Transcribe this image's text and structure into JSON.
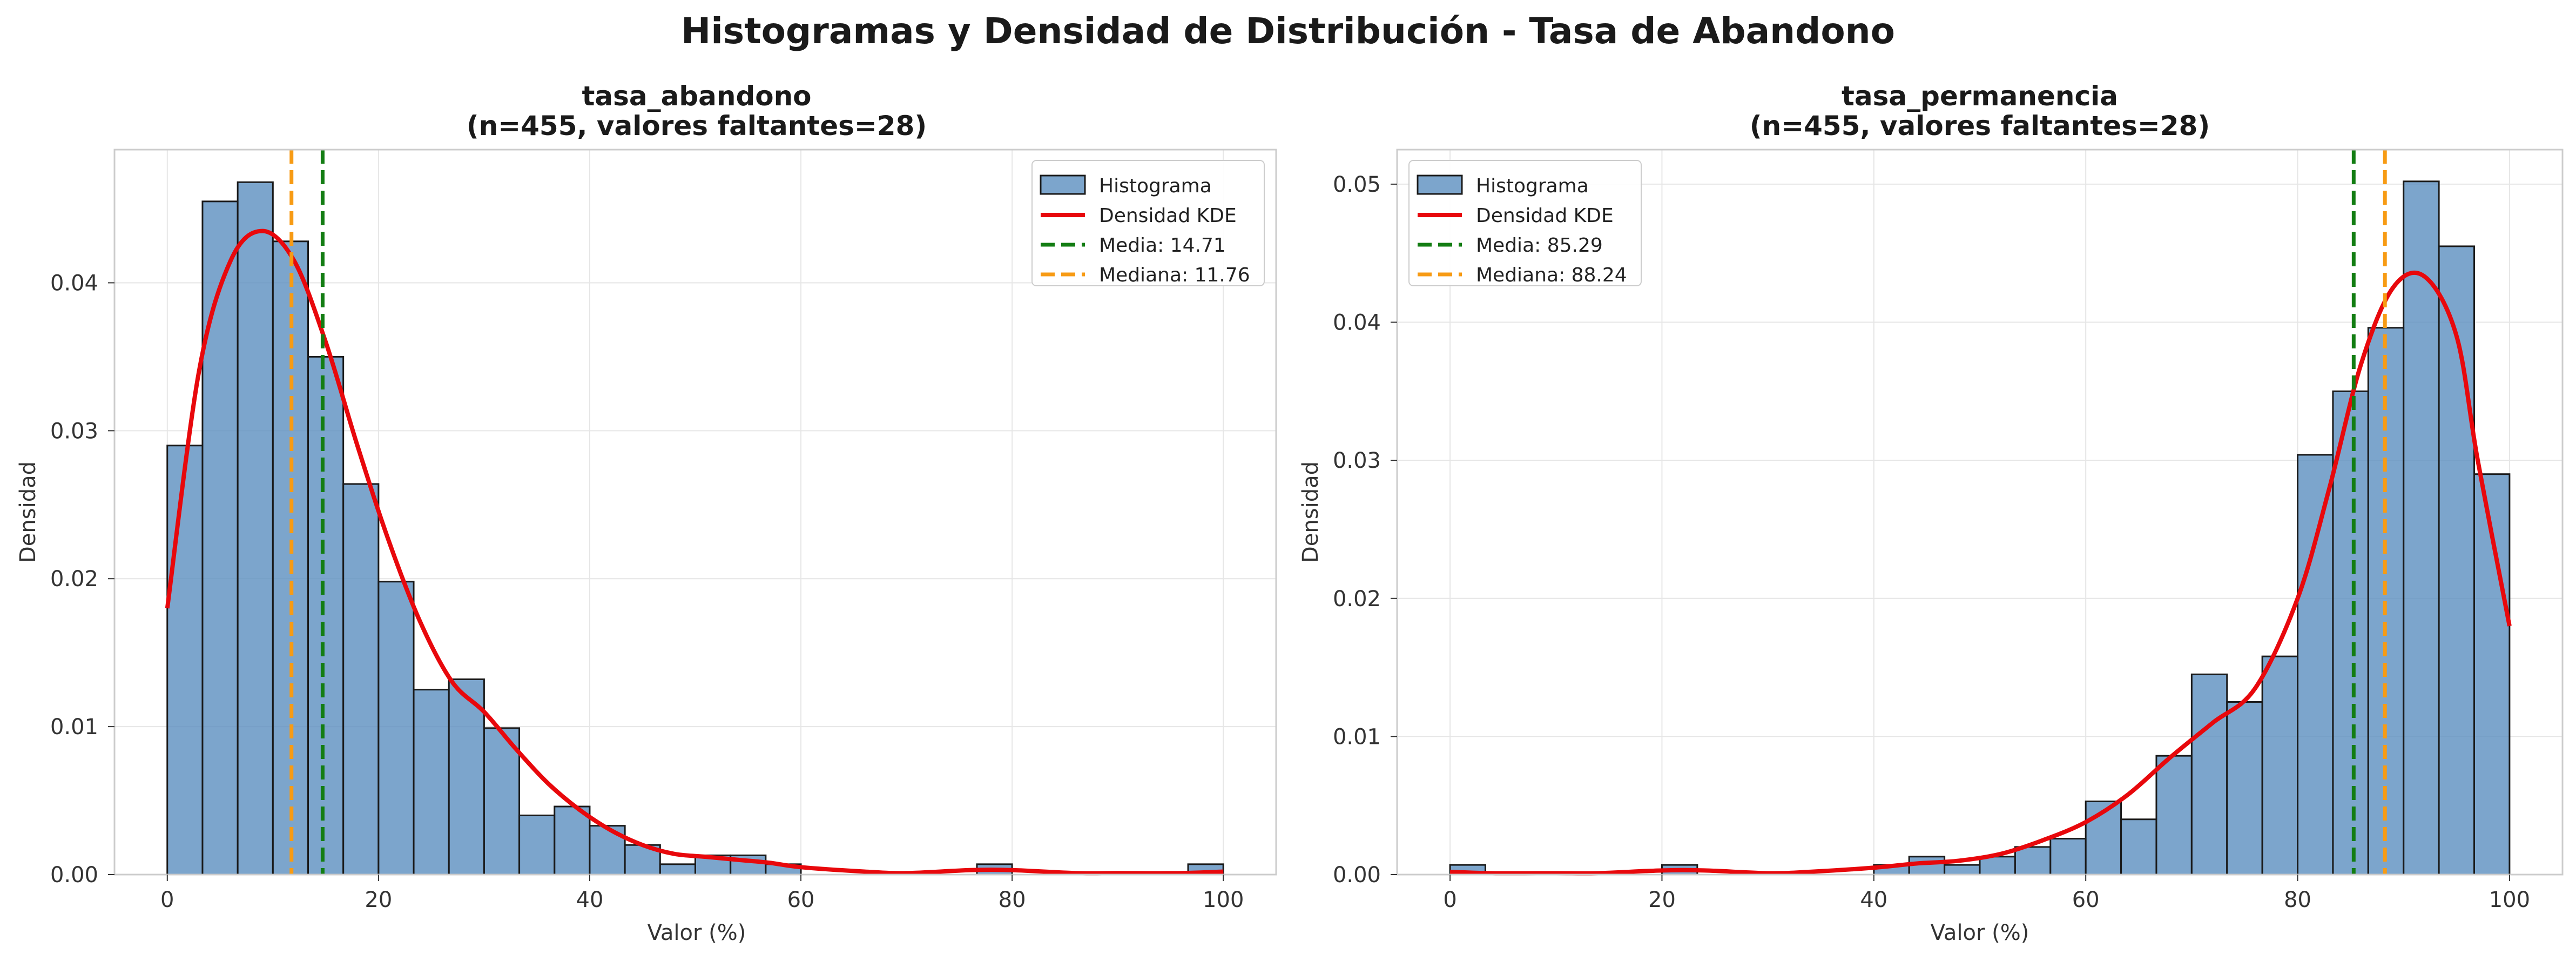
{
  "figure": {
    "suptitle": "Histogramas y Densidad de Distribución - Tasa de Abandono"
  },
  "colors": {
    "bar_fill": "#5b8fbf",
    "bar_edge": "#1a1a1a",
    "kde": "#e8080c",
    "mean": "#137d13",
    "median": "#f79b14",
    "grid": "#e6e6e6",
    "frame": "#cccccc"
  },
  "chart_data": [
    {
      "type": "bar",
      "subtype": "histogram_with_kde",
      "title_line1": "tasa_abandono",
      "title_line2": "(n=455, valores faltantes=28)",
      "xlabel": "Valor (%)",
      "ylabel": "Densidad",
      "xlim": [
        -5,
        105
      ],
      "ylim": [
        0,
        0.049
      ],
      "xticks": [
        0,
        20,
        40,
        60,
        80,
        100
      ],
      "yticks": [
        0.0,
        0.01,
        0.02,
        0.03,
        0.04
      ],
      "ytick_labels": [
        "0.00",
        "0.01",
        "0.02",
        "0.03",
        "0.04"
      ],
      "grid": true,
      "legend_position": "upper right",
      "bins": {
        "start": 0,
        "width": 3.3333,
        "count": 30
      },
      "values": [
        0.029,
        0.0455,
        0.0468,
        0.0428,
        0.035,
        0.0264,
        0.0198,
        0.0125,
        0.0132,
        0.0099,
        0.004,
        0.0046,
        0.0033,
        0.002,
        0.0007,
        0.0013,
        0.0013,
        0.0007,
        0,
        0,
        0,
        0,
        0,
        0.0007,
        0,
        0,
        0,
        0,
        0,
        0.0007
      ],
      "kde": {
        "x": [
          0,
          3,
          6,
          9,
          12,
          15,
          18,
          21,
          24,
          27,
          30,
          33,
          36,
          39,
          42,
          45,
          48,
          51,
          54,
          57,
          60,
          66,
          70,
          76,
          80,
          86,
          90,
          96,
          100
        ],
        "y": [
          0.018,
          0.034,
          0.0415,
          0.0435,
          0.0415,
          0.036,
          0.029,
          0.0225,
          0.017,
          0.013,
          0.011,
          0.0085,
          0.0062,
          0.0044,
          0.003,
          0.002,
          0.0014,
          0.0012,
          0.001,
          0.0008,
          0.0005,
          0.0002,
          0.0001,
          0.0003,
          0.0003,
          0.0001,
          0.0001,
          0.0001,
          0.0002
        ]
      },
      "mean": 14.71,
      "median": 11.76,
      "legend": [
        "Histograma",
        "Densidad KDE",
        "Media: 14.71",
        "Mediana: 11.76"
      ]
    },
    {
      "type": "bar",
      "subtype": "histogram_with_kde",
      "title_line1": "tasa_permanencia",
      "title_line2": "(n=455, valores faltantes=28)",
      "xlabel": "Valor (%)",
      "ylabel": "Densidad",
      "xlim": [
        -5,
        105
      ],
      "ylim": [
        0,
        0.0525
      ],
      "xticks": [
        0,
        20,
        40,
        60,
        80,
        100
      ],
      "yticks": [
        0.0,
        0.01,
        0.02,
        0.03,
        0.04,
        0.05
      ],
      "ytick_labels": [
        "0.00",
        "0.01",
        "0.02",
        "0.03",
        "0.04",
        "0.05"
      ],
      "grid": true,
      "legend_position": "upper left",
      "bins": {
        "start": 0,
        "width": 3.3333,
        "count": 30
      },
      "values": [
        0.0007,
        0,
        0,
        0,
        0,
        0,
        0.0007,
        0,
        0,
        0,
        0,
        0,
        0.0007,
        0.0013,
        0.0007,
        0.0013,
        0.002,
        0.0026,
        0.0053,
        0.004,
        0.0086,
        0.0145,
        0.0125,
        0.0158,
        0.0304,
        0.035,
        0.0396,
        0.0502,
        0.0455,
        0.029
      ],
      "kde": {
        "x": [
          0,
          4,
          10,
          14,
          20,
          24,
          30,
          34,
          40,
          44,
          48,
          52,
          56,
          60,
          64,
          68,
          72,
          76,
          80,
          83,
          86,
          89,
          92,
          95,
          97,
          100
        ],
        "y": [
          0.0002,
          0.0001,
          0.0001,
          0.0001,
          0.0003,
          0.0003,
          0.0001,
          0.0002,
          0.0005,
          0.0008,
          0.001,
          0.0015,
          0.0025,
          0.0038,
          0.0058,
          0.0085,
          0.011,
          0.0135,
          0.02,
          0.028,
          0.037,
          0.0425,
          0.0433,
          0.039,
          0.03,
          0.018
        ]
      },
      "mean": 85.29,
      "median": 88.24,
      "legend": [
        "Histograma",
        "Densidad KDE",
        "Media: 85.29",
        "Mediana: 88.24"
      ]
    }
  ]
}
